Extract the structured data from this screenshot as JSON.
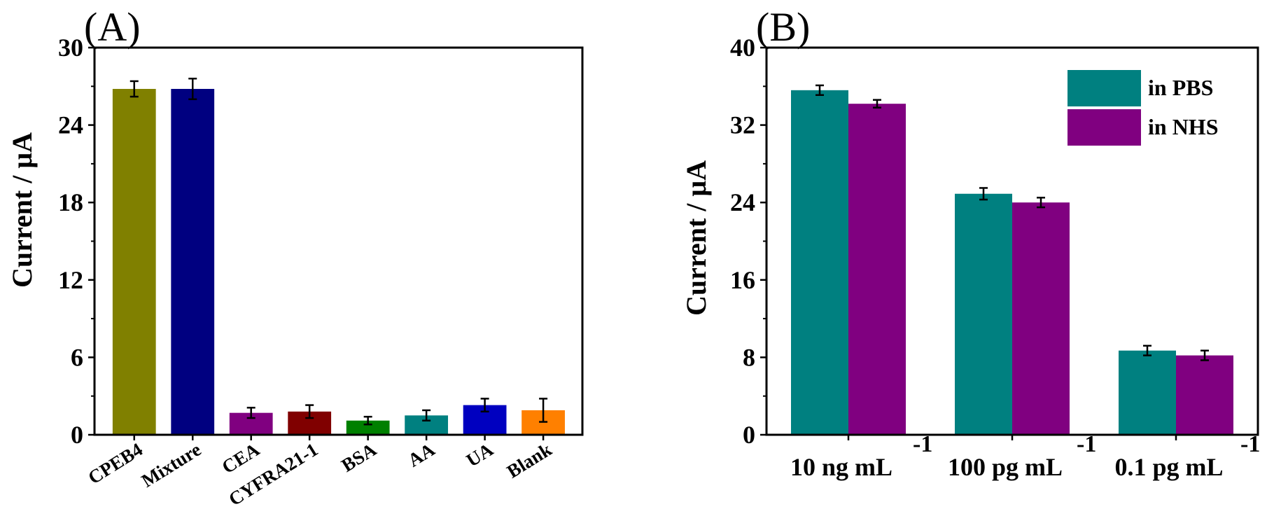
{
  "chart_data": [
    {
      "type": "bar",
      "panel_label": "(A)",
      "ylabel": "Current / μA",
      "xlabel": "",
      "ylim": [
        0,
        30
      ],
      "yticks": [
        0,
        6,
        12,
        18,
        24,
        30
      ],
      "categories": [
        "CPEB4",
        "Mixture",
        "CEA",
        "CYFRA21-1",
        "BSA",
        "AA",
        "UA",
        "Blank"
      ],
      "values": [
        26.8,
        26.8,
        1.7,
        1.8,
        1.1,
        1.5,
        2.3,
        1.9
      ],
      "errors": [
        0.6,
        0.8,
        0.4,
        0.5,
        0.3,
        0.4,
        0.5,
        0.9
      ],
      "colors": [
        "#808000",
        "#000080",
        "#800080",
        "#800000",
        "#008000",
        "#008080",
        "#0000c0",
        "#ff8000"
      ]
    },
    {
      "type": "bar",
      "panel_label": "(B)",
      "ylabel": "Current / μA",
      "xlabel": "",
      "ylim": [
        0,
        40
      ],
      "yticks": [
        0,
        8,
        16,
        24,
        32,
        40
      ],
      "categories": [
        "10 ng mL",
        "100 pg mL",
        "0.1 pg mL"
      ],
      "category_superscript": "-1",
      "legend_position": "top-right",
      "series": [
        {
          "name": "in PBS",
          "color": "#008080",
          "values": [
            35.6,
            24.9,
            8.7
          ],
          "errors": [
            0.5,
            0.6,
            0.5
          ]
        },
        {
          "name": "in NHS",
          "color": "#800080",
          "values": [
            34.2,
            24.0,
            8.2
          ],
          "errors": [
            0.4,
            0.5,
            0.5
          ]
        }
      ]
    }
  ]
}
